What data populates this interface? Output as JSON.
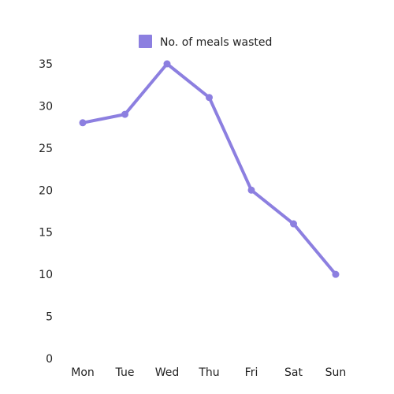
{
  "chart_data": {
    "type": "line",
    "categories": [
      "Mon",
      "Tue",
      "Wed",
      "Thu",
      "Fri",
      "Sat",
      "Sun"
    ],
    "series": [
      {
        "name": "No. of meals wasted",
        "values": [
          28,
          29,
          35,
          31,
          20,
          16,
          10
        ],
        "color": "#8c7fe0"
      }
    ],
    "y_ticks": [
      "0",
      "5",
      "10",
      "15",
      "20",
      "25",
      "30",
      "35"
    ],
    "ylim": [
      0,
      35
    ],
    "grid": false,
    "legend_position": "top-center",
    "title": "",
    "xlabel": "",
    "ylabel": ""
  }
}
